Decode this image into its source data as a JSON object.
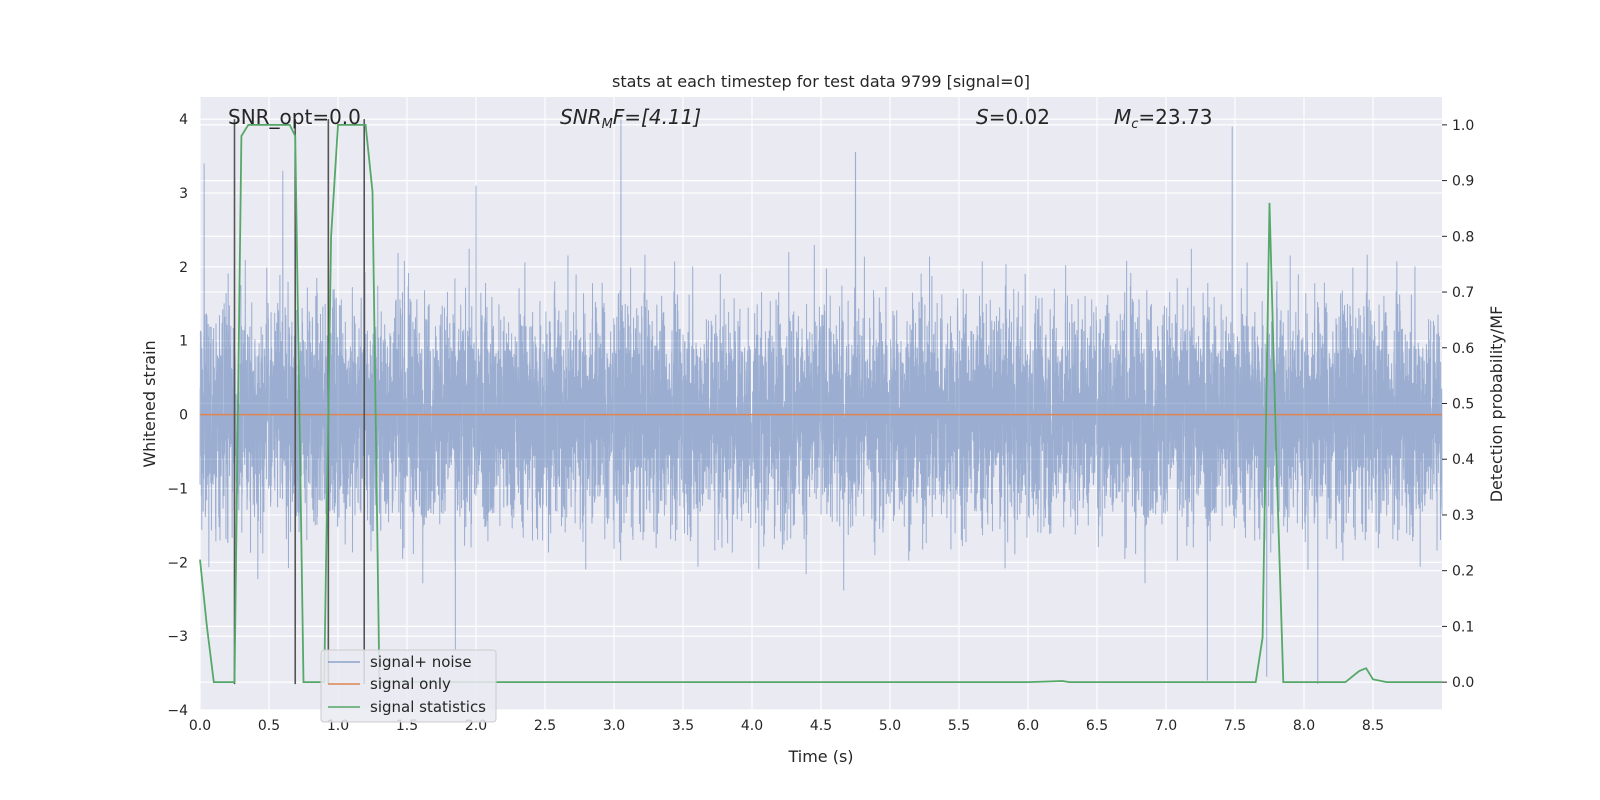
{
  "chart_data": {
    "type": "line",
    "title": "stats at each timestep for test data 9799 [signal=0]",
    "xlabel": "Time (s)",
    "ylabel": "Whitened strain",
    "y2label": "Detection probability/MF",
    "xlim": [
      0,
      9
    ],
    "ylim": [
      -4,
      4.3
    ],
    "y2lim": [
      -0.05,
      1.05
    ],
    "xticks": [
      0,
      0.5,
      1,
      1.5,
      2,
      2.5,
      3,
      3.5,
      4,
      4.5,
      5,
      5.5,
      6,
      6.5,
      7,
      7.5,
      8,
      8.5
    ],
    "yticks": [
      -4,
      -3,
      -2,
      -1,
      0,
      1,
      2,
      3,
      4
    ],
    "y2ticks": [
      0,
      0.1,
      0.2,
      0.3,
      0.4,
      0.5,
      0.6,
      0.7,
      0.8,
      0.9,
      1.0
    ],
    "grid": true,
    "legend_position": "lower-left",
    "annotations": {
      "snr_opt": "SNR_opt=0.0",
      "snr_mf": "SNR",
      "snr_mf_sub": "M",
      "snr_mf_rest": "F=[4.11]",
      "s_label": "S",
      "s_value": "=0.02",
      "mc_label": "M",
      "mc_sub": "c",
      "mc_value": "=23.73"
    },
    "colors": {
      "noise": "#4c72b0",
      "signal": "#dd8452",
      "stats": "#55a868",
      "vlines": "#555555",
      "background": "#eaeaf2"
    },
    "series": [
      {
        "name": "signal+ noise",
        "kind": "noise",
        "axis": "left",
        "n_points": 9000,
        "sigma": 0.75,
        "peaks": [
          [
            0.03,
            3.4
          ],
          [
            3.05,
            4.0
          ],
          [
            4.75,
            3.55
          ],
          [
            7.48,
            3.9
          ],
          [
            2.0,
            3.1
          ],
          [
            0.6,
            3.3
          ],
          [
            7.73,
            -3.55
          ],
          [
            7.3,
            -3.6
          ],
          [
            8.1,
            -3.65
          ],
          [
            0.25,
            -3.1
          ],
          [
            1.85,
            -3.2
          ]
        ]
      },
      {
        "name": "signal only",
        "kind": "line",
        "axis": "left",
        "x": [
          0,
          9
        ],
        "y": [
          0,
          0
        ]
      },
      {
        "name": "signal statistics",
        "kind": "line",
        "axis": "right",
        "x": [
          0,
          0.05,
          0.1,
          0.25,
          0.3,
          0.35,
          0.4,
          0.5,
          0.6,
          0.65,
          0.69,
          0.75,
          0.8,
          0.85,
          0.9,
          0.95,
          1.0,
          1.1,
          1.2,
          1.25,
          1.3,
          1.4,
          2.0,
          3.0,
          4.0,
          5.0,
          6.0,
          6.25,
          6.3,
          7.0,
          7.65,
          7.7,
          7.75,
          7.8,
          7.85,
          7.9,
          8.0,
          8.1,
          8.2,
          8.3,
          8.35,
          8.4,
          8.45,
          8.5,
          8.6,
          9.0
        ],
        "y": [
          0.22,
          0.1,
          0.0,
          0.0,
          0.98,
          1.0,
          1.0,
          1.0,
          1.0,
          1.0,
          0.98,
          0.0,
          0.0,
          0.0,
          0.0,
          0.8,
          1.0,
          1.0,
          1.0,
          0.88,
          0.0,
          0.0,
          0.0,
          0.0,
          0.0,
          0.0,
          0.0,
          0.002,
          0.0,
          0.0,
          0.0,
          0.08,
          0.86,
          0.4,
          0.0,
          0.0,
          0.0,
          0.0,
          0.0,
          0.0,
          0.01,
          0.02,
          0.025,
          0.005,
          0.0,
          0.0
        ]
      }
    ],
    "vlines": [
      {
        "x": 0.25,
        "y": [
          -3.65,
          4.0
        ]
      },
      {
        "x": 0.69,
        "y": [
          -3.65,
          4.0
        ]
      },
      {
        "x": 0.93,
        "y": [
          -3.65,
          4.0
        ]
      },
      {
        "x": 1.19,
        "y": [
          -3.65,
          4.0
        ]
      }
    ]
  }
}
